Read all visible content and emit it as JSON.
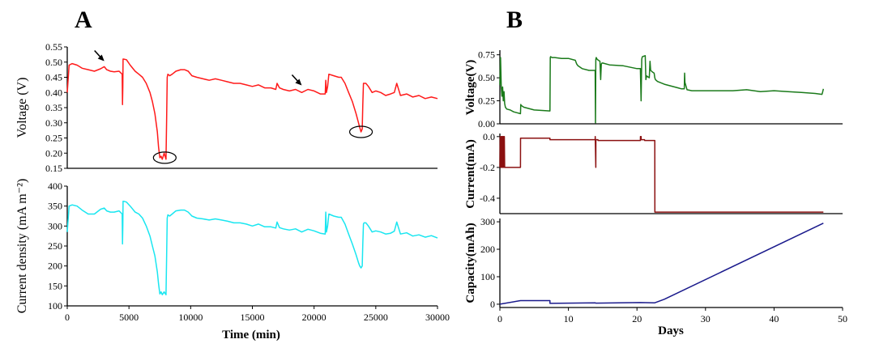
{
  "panel_labels": {
    "a": "A",
    "b": "B"
  },
  "colors": {
    "voltage_a": "#ff1a1a",
    "current_density": "#19e6f0",
    "voltage_b": "#1a7a1a",
    "current_b": "#8b1010",
    "capacity": "#1a1a8c",
    "axis": "#000000"
  },
  "chart_data": [
    {
      "id": "A-voltage",
      "type": "line",
      "title": "",
      "xlabel": "",
      "ylabel": "Voltage (V)",
      "xlim": [
        0,
        30000
      ],
      "ylim": [
        0.15,
        0.55
      ],
      "yticks": [
        "0.15",
        "0.20",
        "0.25",
        "0.30",
        "0.35",
        "0.40",
        "0.45",
        "0.50",
        "0.55"
      ],
      "series": [
        {
          "name": "Voltage",
          "x": [
            0,
            150,
            400,
            800,
            1200,
            1700,
            2200,
            2700,
            3000,
            3200,
            3500,
            3800,
            4200,
            4450,
            4480,
            4500,
            4520,
            4560,
            4800,
            5100,
            5500,
            5800,
            6100,
            6400,
            6700,
            6900,
            7100,
            7300,
            7400,
            7500,
            7600,
            7700,
            7850,
            8000,
            8050,
            8100,
            8150,
            8300,
            8500,
            8800,
            9200,
            9500,
            9800,
            10100,
            10500,
            11000,
            11500,
            12000,
            12500,
            13000,
            13500,
            14000,
            14500,
            15000,
            15500,
            16000,
            16500,
            16900,
            17000,
            17200,
            17500,
            18000,
            18500,
            19000,
            19500,
            20000,
            20500,
            20900,
            20950,
            21000,
            21100,
            21200,
            21600,
            22000,
            22200,
            22500,
            22800,
            23100,
            23400,
            23600,
            23700,
            23800,
            23900,
            23950,
            24000,
            24050,
            24200,
            24400,
            24700,
            25000,
            25400,
            25800,
            26200,
            26500,
            26700,
            27000,
            27500,
            28000,
            28500,
            29000,
            29500,
            30000
          ],
          "y": [
            0.4,
            0.49,
            0.495,
            0.49,
            0.48,
            0.475,
            0.47,
            0.478,
            0.485,
            0.475,
            0.47,
            0.468,
            0.47,
            0.46,
            0.36,
            0.42,
            0.51,
            0.51,
            0.508,
            0.49,
            0.47,
            0.46,
            0.45,
            0.43,
            0.4,
            0.37,
            0.33,
            0.27,
            0.22,
            0.185,
            0.19,
            0.18,
            0.2,
            0.18,
            0.3,
            0.45,
            0.46,
            0.455,
            0.46,
            0.47,
            0.475,
            0.475,
            0.47,
            0.455,
            0.45,
            0.445,
            0.44,
            0.445,
            0.44,
            0.435,
            0.43,
            0.43,
            0.425,
            0.42,
            0.425,
            0.415,
            0.415,
            0.41,
            0.43,
            0.415,
            0.41,
            0.405,
            0.41,
            0.4,
            0.41,
            0.405,
            0.395,
            0.395,
            0.44,
            0.4,
            0.42,
            0.46,
            0.455,
            0.45,
            0.45,
            0.43,
            0.4,
            0.37,
            0.33,
            0.3,
            0.285,
            0.27,
            0.28,
            0.36,
            0.43,
            0.43,
            0.43,
            0.42,
            0.4,
            0.405,
            0.4,
            0.39,
            0.395,
            0.4,
            0.43,
            0.39,
            0.395,
            0.385,
            0.39,
            0.38,
            0.385,
            0.38
          ]
        }
      ]
    },
    {
      "id": "A-current-density",
      "type": "line",
      "title": "",
      "xlabel": "Time (min)",
      "ylabel": "Current density (mA m⁻²)",
      "xlim": [
        0,
        30000
      ],
      "ylim": [
        100,
        400
      ],
      "yticks": [
        "100",
        "150",
        "200",
        "250",
        "300",
        "350",
        "400"
      ],
      "xticks": [
        "0",
        "5000",
        "10000",
        "15000",
        "20000",
        "25000",
        "30000"
      ],
      "series": [
        {
          "name": "Current density",
          "x": [
            0,
            150,
            400,
            800,
            1200,
            1700,
            2200,
            2700,
            3000,
            3200,
            3500,
            3800,
            4200,
            4450,
            4480,
            4500,
            4520,
            4560,
            4800,
            5100,
            5500,
            5800,
            6100,
            6400,
            6700,
            6900,
            7100,
            7300,
            7400,
            7500,
            7600,
            7700,
            7850,
            8000,
            8050,
            8100,
            8150,
            8300,
            8500,
            8800,
            9200,
            9500,
            9800,
            10100,
            10500,
            11000,
            11500,
            12000,
            12500,
            13000,
            13500,
            14000,
            14500,
            15000,
            15500,
            16000,
            16500,
            16900,
            17000,
            17200,
            17500,
            18000,
            18500,
            19000,
            19500,
            20000,
            20500,
            20900,
            20950,
            21000,
            21100,
            21200,
            21600,
            22000,
            22200,
            22500,
            22800,
            23100,
            23400,
            23600,
            23700,
            23800,
            23900,
            23950,
            24000,
            24050,
            24200,
            24400,
            24700,
            25000,
            25400,
            25800,
            26200,
            26500,
            26700,
            27000,
            27500,
            28000,
            28500,
            29000,
            29500,
            30000
          ],
          "y": [
            285,
            350,
            353,
            350,
            340,
            330,
            330,
            342,
            345,
            338,
            335,
            335,
            338,
            330,
            255,
            300,
            362,
            362,
            360,
            350,
            335,
            330,
            320,
            300,
            275,
            250,
            225,
            185,
            155,
            130,
            135,
            128,
            135,
            128,
            215,
            320,
            328,
            325,
            330,
            338,
            340,
            340,
            335,
            325,
            320,
            318,
            315,
            318,
            315,
            312,
            308,
            308,
            305,
            300,
            305,
            298,
            298,
            295,
            310,
            296,
            293,
            290,
            293,
            285,
            292,
            288,
            282,
            280,
            335,
            285,
            300,
            330,
            325,
            322,
            322,
            305,
            280,
            255,
            228,
            208,
            200,
            195,
            200,
            255,
            305,
            308,
            308,
            300,
            285,
            288,
            285,
            280,
            282,
            287,
            310,
            280,
            283,
            275,
            278,
            272,
            276,
            270
          ]
        }
      ]
    },
    {
      "id": "B-voltage",
      "type": "line",
      "title": "",
      "xlabel": "",
      "ylabel": "Voltage(V)",
      "xlim": [
        0,
        50
      ],
      "ylim": [
        0,
        0.8
      ],
      "yticks": [
        "0.00",
        "0.25",
        "0.50",
        "0.75"
      ],
      "series": [
        {
          "name": "Voltage",
          "x": [
            0,
            0.1,
            0.2,
            0.3,
            0.4,
            0.5,
            0.6,
            0.7,
            0.8,
            1.0,
            1.5,
            2.0,
            2.5,
            3.0,
            3.05,
            3.1,
            3.5,
            5.0,
            7.3,
            7.35,
            7.4,
            7.6,
            8.0,
            9.0,
            10.0,
            11.0,
            11.2,
            11.4,
            12.0,
            13.0,
            13.9,
            13.95,
            14.0,
            14.05,
            14.2,
            14.6,
            14.7,
            14.8,
            14.9,
            15.0,
            16.0,
            18.0,
            20.0,
            20.5,
            20.6,
            20.7,
            20.75,
            20.8,
            21.2,
            21.3,
            21.4,
            21.8,
            21.9,
            22.0,
            22.3,
            22.5,
            22.6,
            22.7,
            23.0,
            24.0,
            25.0,
            26.0,
            26.5,
            26.9,
            26.95,
            27.0,
            27.3,
            28.0,
            30.0,
            32.0,
            34.0,
            36.0,
            38.0,
            40.0,
            42.0,
            44.0,
            46.0,
            47.0,
            47.1,
            47.2
          ],
          "y": [
            0.42,
            0.72,
            0.4,
            0.3,
            0.4,
            0.25,
            0.35,
            0.22,
            0.18,
            0.16,
            0.15,
            0.13,
            0.12,
            0.11,
            0.21,
            0.2,
            0.18,
            0.15,
            0.14,
            0.72,
            0.73,
            0.72,
            0.72,
            0.71,
            0.71,
            0.69,
            0.65,
            0.63,
            0.6,
            0.58,
            0.58,
            0.01,
            0.7,
            0.72,
            0.7,
            0.68,
            0.48,
            0.65,
            0.66,
            0.66,
            0.64,
            0.63,
            0.6,
            0.6,
            0.25,
            0.7,
            0.72,
            0.73,
            0.74,
            0.48,
            0.52,
            0.5,
            0.68,
            0.58,
            0.56,
            0.55,
            0.5,
            0.48,
            0.46,
            0.43,
            0.41,
            0.39,
            0.38,
            0.38,
            0.55,
            0.45,
            0.37,
            0.36,
            0.36,
            0.36,
            0.36,
            0.37,
            0.35,
            0.36,
            0.35,
            0.34,
            0.33,
            0.32,
            0.35,
            0.38
          ]
        }
      ]
    },
    {
      "id": "B-current",
      "type": "line",
      "title": "",
      "xlabel": "",
      "ylabel": "Current(mA)",
      "xlim": [
        0,
        50
      ],
      "ylim": [
        -0.5,
        0.02
      ],
      "yticks": [
        "0.0",
        "-0.2",
        "-0.4"
      ],
      "series": [
        {
          "name": "Current",
          "x": [
            0,
            0.05,
            0.1,
            0.15,
            0.2,
            0.25,
            0.3,
            0.35,
            0.4,
            0.45,
            0.5,
            0.55,
            0.6,
            0.65,
            0.7,
            3.0,
            3.01,
            7.3,
            7.31,
            13.9,
            13.91,
            14.0,
            14.01,
            14.3,
            14.31,
            20.5,
            20.51,
            20.6,
            20.61,
            21.1,
            21.11,
            22.6,
            22.61,
            47.2
          ],
          "y": [
            -0.2,
            0.0,
            -0.2,
            0.0,
            -0.2,
            0.0,
            -0.2,
            0.0,
            -0.2,
            0.0,
            -0.2,
            0.0,
            -0.2,
            0.0,
            -0.2,
            -0.2,
            -0.01,
            -0.01,
            -0.02,
            -0.02,
            0.0,
            -0.2,
            -0.02,
            -0.02,
            -0.025,
            -0.025,
            0.0,
            0.0,
            -0.02,
            -0.02,
            -0.025,
            -0.025,
            -0.49,
            -0.49
          ]
        }
      ]
    },
    {
      "id": "B-capacity",
      "type": "line",
      "title": "",
      "xlabel": "Days",
      "ylabel": "Capacity(mAh)",
      "xlim": [
        0,
        50
      ],
      "ylim": [
        -12,
        312
      ],
      "yticks": [
        "0",
        "100",
        "200",
        "300"
      ],
      "xticks": [
        "0",
        "10",
        "20",
        "30",
        "40",
        "50"
      ],
      "series": [
        {
          "name": "Capacity",
          "x": [
            0,
            0.7,
            3.0,
            7.3,
            7.31,
            13.9,
            14.0,
            20.5,
            22.6,
            24.0,
            47.2
          ],
          "y": [
            0,
            3,
            13,
            13,
            3,
            5,
            4,
            6,
            5,
            18,
            295
          ]
        }
      ]
    }
  ],
  "annotations": {
    "arrows": [
      {
        "chart": "A-voltage",
        "label": "arrow",
        "x": 3000,
        "y": 0.49
      },
      {
        "chart": "A-voltage",
        "label": "arrow",
        "x": 19000,
        "y": 0.41
      }
    ],
    "ellipses": [
      {
        "chart": "A-voltage",
        "label": "ellipse",
        "x": 7900,
        "y": 0.185
      },
      {
        "chart": "A-voltage",
        "label": "ellipse",
        "x": 23800,
        "y": 0.27
      }
    ]
  }
}
